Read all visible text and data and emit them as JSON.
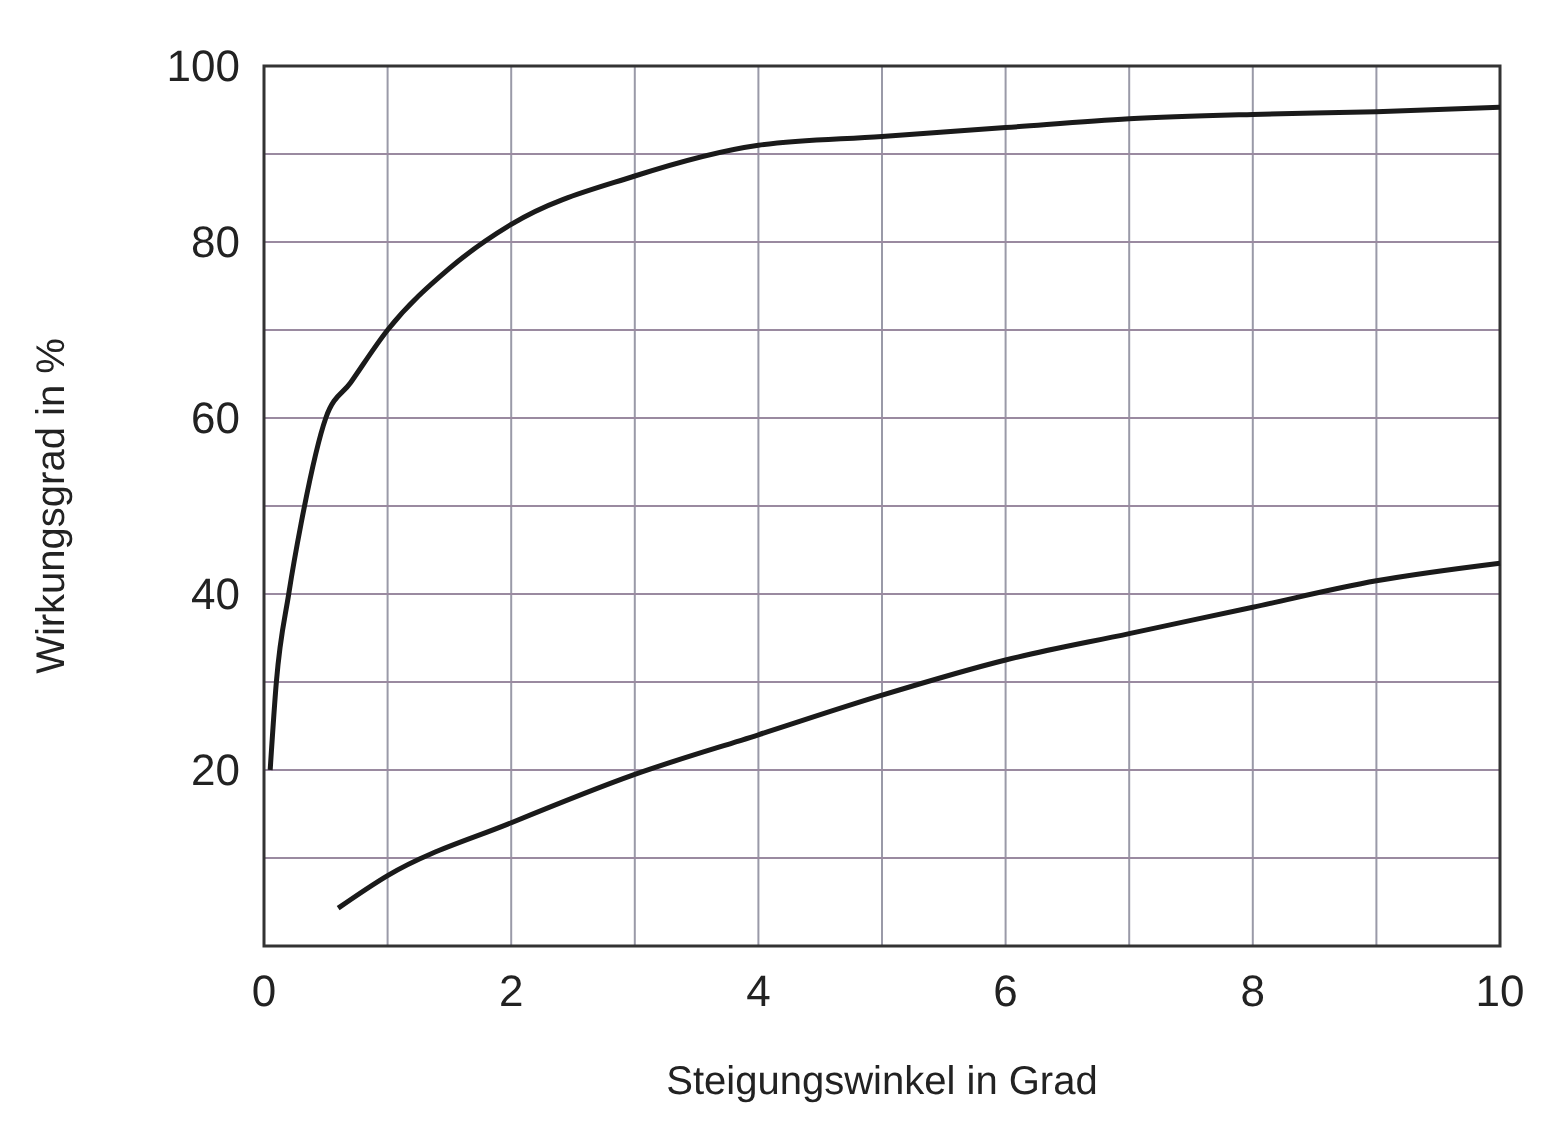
{
  "chart_data": {
    "type": "line",
    "xlabel": "Steigungswinkel in Grad",
    "ylabel": "Wirkungsgrad in %",
    "xlim": [
      0,
      10
    ],
    "ylim": [
      0,
      100
    ],
    "xticks": [
      0,
      {
        "value": 1,
        "label": null
      },
      2,
      {
        "value": 3,
        "label": null
      },
      4,
      {
        "value": 5,
        "label": null
      },
      6,
      {
        "value": 7,
        "label": null
      },
      8,
      {
        "value": 9,
        "label": null
      },
      10
    ],
    "yticks": [
      {
        "value": 10,
        "label": null
      },
      20,
      {
        "value": 30,
        "label": null
      },
      40,
      {
        "value": 50,
        "label": null
      },
      60,
      {
        "value": 70,
        "label": null
      },
      80,
      {
        "value": 90,
        "label": null
      },
      100
    ],
    "grid": true,
    "marker": "none",
    "line_style": "solid",
    "series": [
      {
        "color": "#1a1a1a",
        "x": [
          0.05,
          0.1,
          0.2,
          0.3,
          0.5,
          0.7,
          1,
          1.5,
          2,
          3,
          4,
          5,
          6,
          7,
          8,
          9,
          10
        ],
        "values": [
          20,
          30,
          40,
          48,
          60,
          64,
          70,
          77,
          82,
          87.5,
          91,
          92,
          93,
          94,
          94.5,
          94.8,
          95.3
        ]
      },
      {
        "color": "#1a1a1a",
        "x": [
          0.6,
          1,
          2,
          3,
          4,
          5,
          6,
          7,
          8,
          9,
          10
        ],
        "values": [
          4.3,
          8,
          14,
          19.5,
          24,
          28.5,
          32.5,
          35.5,
          38.5,
          41.5,
          43.5
        ]
      }
    ]
  }
}
